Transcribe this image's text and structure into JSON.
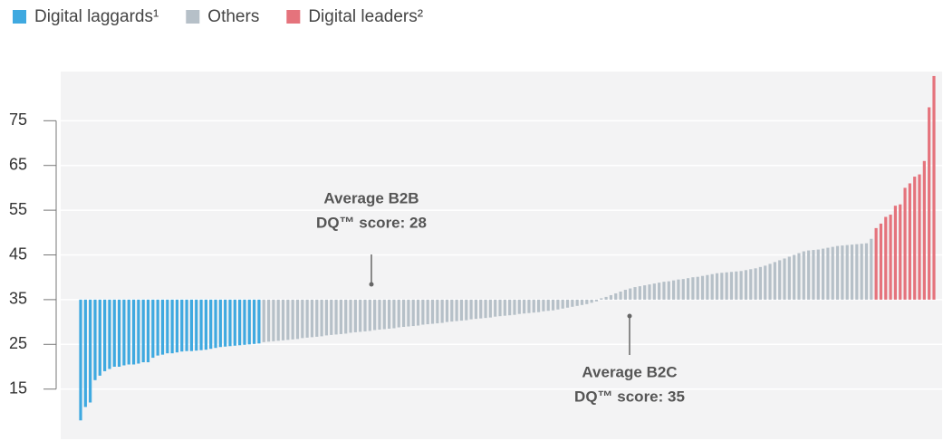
{
  "chart_data": {
    "type": "bar",
    "baseline": 35,
    "ylim": [
      4,
      86
    ],
    "yticks": [
      15,
      25,
      35,
      45,
      55,
      65,
      75
    ],
    "grid": true,
    "legend": "top-left",
    "series": [
      {
        "name": "Digital laggards¹",
        "color": "#3fa9e0",
        "values": [
          8,
          11,
          12,
          17,
          18,
          19,
          19.5,
          20,
          20,
          20.3,
          20.5,
          20.5,
          20.7,
          21,
          21,
          22,
          22.5,
          22.7,
          23,
          23,
          23.2,
          23.4,
          23.5,
          23.5,
          23.6,
          23.7,
          23.8,
          24,
          24.2,
          24.4,
          24.5,
          24.6,
          24.7,
          24.8,
          24.9,
          25,
          25.1,
          25.2
        ]
      },
      {
        "name": "Others",
        "color": "#b6c0c8",
        "values": [
          25.5,
          25.6,
          25.7,
          25.8,
          25.9,
          26,
          26.1,
          26.2,
          26.4,
          26.5,
          26.6,
          26.7,
          26.8,
          27,
          27.1,
          27.2,
          27.3,
          27.4,
          27.6,
          27.7,
          27.8,
          27.9,
          28,
          28.2,
          28.3,
          28.4,
          28.5,
          28.6,
          28.8,
          28.9,
          29,
          29.1,
          29.2,
          29.4,
          29.5,
          29.6,
          29.7,
          29.8,
          30,
          30.1,
          30.2,
          30.3,
          30.4,
          30.6,
          30.7,
          30.8,
          30.9,
          31,
          31.2,
          31.3,
          31.4,
          31.5,
          31.6,
          31.8,
          31.9,
          32,
          32.1,
          32.2,
          32.4,
          32.5,
          32.6,
          32.8,
          33,
          33.2,
          33.4,
          33.6,
          33.8,
          34,
          34.3,
          34.6,
          35.3,
          35.6,
          36,
          36.4,
          36.8,
          37.2,
          37.5,
          37.8,
          38,
          38.2,
          38.4,
          38.6,
          38.8,
          39,
          39.1,
          39.3,
          39.5,
          39.6,
          39.8,
          40,
          40.1,
          40.3,
          40.5,
          40.7,
          40.9,
          41,
          41.1,
          41.2,
          41.3,
          41.4,
          41.6,
          41.8,
          42,
          42.3,
          42.6,
          43,
          43.4,
          43.8,
          44.2,
          44.6,
          45,
          45.4,
          45.8,
          46,
          46.1,
          46.2,
          46.4,
          46.6,
          46.8,
          47,
          47.1,
          47.2,
          47.3,
          47.4,
          47.5,
          47.6,
          48.6
        ]
      },
      {
        "name": "Digital leaders²",
        "color": "#e5737c",
        "values": [
          51,
          52,
          53.5,
          54,
          56,
          56.3,
          60,
          61,
          62.5,
          63,
          66,
          78,
          85
        ]
      }
    ],
    "annotations": [
      {
        "text": [
          "Average B2B",
          "DQ™ score: 28"
        ]
      },
      {
        "text": [
          "Average B2C",
          "DQ™ score: 35"
        ]
      }
    ]
  }
}
